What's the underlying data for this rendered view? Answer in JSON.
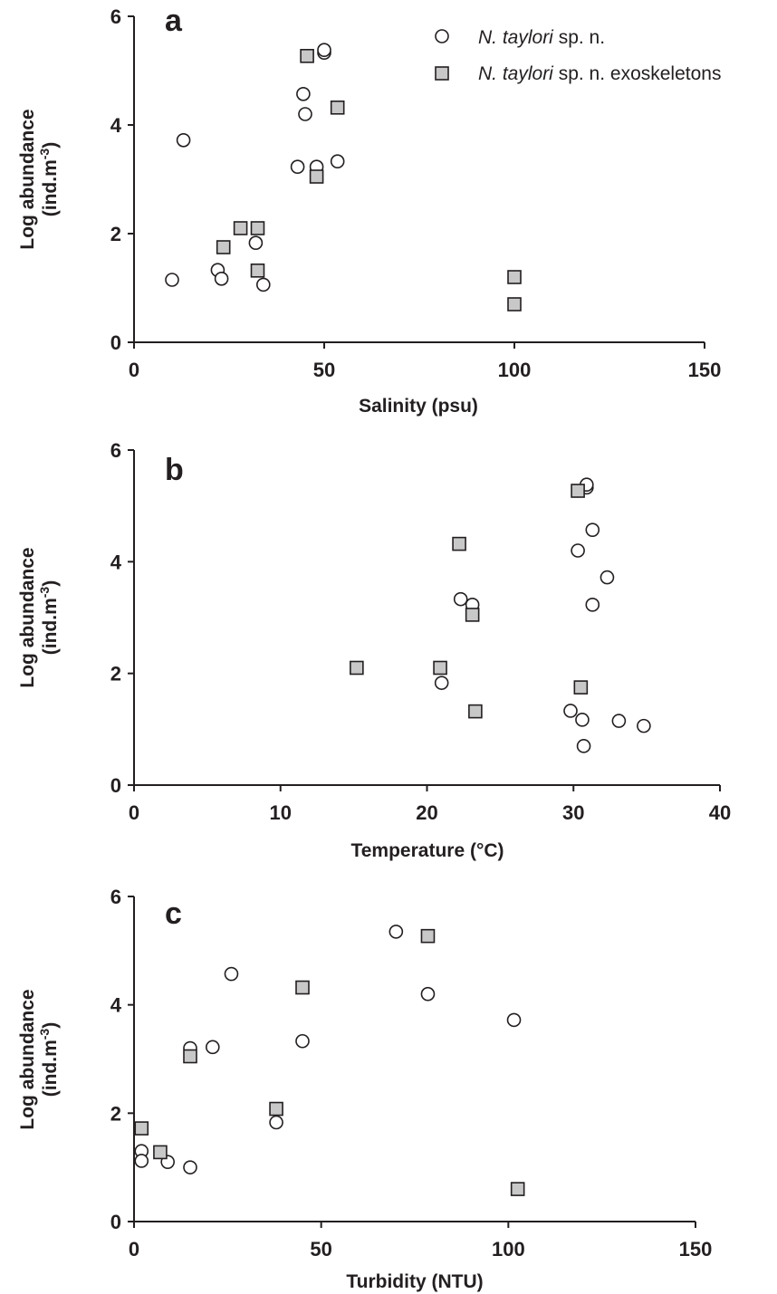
{
  "legend": {
    "species_italic": "N. taylori",
    "series1_suffix": " sp. n.",
    "series2_suffix": " sp. n. exoskeletons"
  },
  "colors": {
    "axis": "#231f20",
    "circle_fill": "#ffffff",
    "square_fill": "#c8c8c8"
  },
  "chart_data": [
    {
      "type": "scatter",
      "panel": "a",
      "xlabel": "Salinity (psu)",
      "ylabel_line1": "Log abundance",
      "ylabel_line2_main": "(ind.m",
      "ylabel_line2_sup": "-3",
      "ylabel_line2_end": ")",
      "xlim": [
        0,
        150
      ],
      "ylim": [
        0,
        6
      ],
      "xticks": [
        "0",
        "50",
        "100",
        "150"
      ],
      "yticks": [
        "0",
        "2",
        "4",
        "6"
      ],
      "grid": false,
      "legend_position": "top-right",
      "series": [
        {
          "name": "N. taylori sp. n.",
          "marker": "circle",
          "points": [
            {
              "x": 10,
              "y": 1.15
            },
            {
              "x": 13,
              "y": 3.72
            },
            {
              "x": 22,
              "y": 1.33
            },
            {
              "x": 23,
              "y": 1.17
            },
            {
              "x": 32,
              "y": 1.83
            },
            {
              "x": 34,
              "y": 1.06
            },
            {
              "x": 43,
              "y": 3.23
            },
            {
              "x": 44.5,
              "y": 4.57
            },
            {
              "x": 45,
              "y": 4.2
            },
            {
              "x": 48,
              "y": 3.23
            },
            {
              "x": 50,
              "y": 5.33
            },
            {
              "x": 50,
              "y": 5.38
            },
            {
              "x": 53.5,
              "y": 3.33
            }
          ]
        },
        {
          "name": "N. taylori sp. n. exoskeletons",
          "marker": "square",
          "points": [
            {
              "x": 23.5,
              "y": 1.75
            },
            {
              "x": 28,
              "y": 2.1
            },
            {
              "x": 32.5,
              "y": 2.1
            },
            {
              "x": 32.5,
              "y": 1.32
            },
            {
              "x": 45.5,
              "y": 5.27
            },
            {
              "x": 48,
              "y": 3.05
            },
            {
              "x": 53.5,
              "y": 4.32
            },
            {
              "x": 100,
              "y": 1.2
            },
            {
              "x": 100,
              "y": 0.7
            }
          ]
        }
      ]
    },
    {
      "type": "scatter",
      "panel": "b",
      "xlabel": "Temperature (°C)",
      "ylabel_line1": "Log abundance",
      "ylabel_line2_main": "(ind.m",
      "ylabel_line2_sup": "-3",
      "ylabel_line2_end": ")",
      "xlim": [
        0,
        40
      ],
      "ylim": [
        0,
        6
      ],
      "xticks": [
        "0",
        "10",
        "20",
        "30",
        "40"
      ],
      "yticks": [
        "0",
        "2",
        "4",
        "6"
      ],
      "grid": false,
      "series": [
        {
          "name": "N. taylori sp. n.",
          "marker": "circle",
          "points": [
            {
              "x": 21,
              "y": 1.83
            },
            {
              "x": 22.3,
              "y": 3.33
            },
            {
              "x": 23.1,
              "y": 3.23
            },
            {
              "x": 29.8,
              "y": 1.33
            },
            {
              "x": 30.3,
              "y": 4.2
            },
            {
              "x": 30.6,
              "y": 1.17
            },
            {
              "x": 30.7,
              "y": 0.7
            },
            {
              "x": 30.9,
              "y": 5.33
            },
            {
              "x": 30.9,
              "y": 5.38
            },
            {
              "x": 31.3,
              "y": 4.57
            },
            {
              "x": 31.3,
              "y": 3.23
            },
            {
              "x": 32.3,
              "y": 3.72
            },
            {
              "x": 33.1,
              "y": 1.15
            },
            {
              "x": 34.8,
              "y": 1.06
            }
          ]
        },
        {
          "name": "N. taylori sp. n. exoskeletons",
          "marker": "square",
          "points": [
            {
              "x": 15.2,
              "y": 2.1
            },
            {
              "x": 20.9,
              "y": 2.1
            },
            {
              "x": 22.2,
              "y": 4.32
            },
            {
              "x": 23.1,
              "y": 3.05
            },
            {
              "x": 23.3,
              "y": 1.32
            },
            {
              "x": 30.3,
              "y": 5.27
            },
            {
              "x": 30.5,
              "y": 1.75
            }
          ]
        }
      ]
    },
    {
      "type": "scatter",
      "panel": "c",
      "xlabel": "Turbidity (NTU)",
      "ylabel_line1": "Log abundance",
      "ylabel_line2_main": "(ind.m",
      "ylabel_line2_sup": "-3",
      "ylabel_line2_end": ")",
      "xlim": [
        0,
        150
      ],
      "ylim": [
        0,
        6
      ],
      "xticks": [
        "0",
        "50",
        "100",
        "150"
      ],
      "yticks": [
        "0",
        "2",
        "4",
        "6"
      ],
      "grid": false,
      "series": [
        {
          "name": "N. taylori sp. n.",
          "marker": "circle",
          "points": [
            {
              "x": 2,
              "y": 1.3
            },
            {
              "x": 2,
              "y": 1.12
            },
            {
              "x": 9,
              "y": 1.1
            },
            {
              "x": 15,
              "y": 1.0
            },
            {
              "x": 15,
              "y": 3.2
            },
            {
              "x": 21,
              "y": 3.22
            },
            {
              "x": 26,
              "y": 4.57
            },
            {
              "x": 38,
              "y": 1.83
            },
            {
              "x": 45,
              "y": 3.33
            },
            {
              "x": 70,
              "y": 5.35
            },
            {
              "x": 78.5,
              "y": 4.2
            },
            {
              "x": 101.5,
              "y": 3.72
            }
          ]
        },
        {
          "name": "N. taylori sp. n. exoskeletons",
          "marker": "square",
          "points": [
            {
              "x": 2,
              "y": 1.72
            },
            {
              "x": 7,
              "y": 1.28
            },
            {
              "x": 15,
              "y": 3.05
            },
            {
              "x": 38,
              "y": 2.08
            },
            {
              "x": 45,
              "y": 4.32
            },
            {
              "x": 78.5,
              "y": 5.27
            },
            {
              "x": 102.5,
              "y": 0.6
            }
          ]
        }
      ]
    }
  ]
}
